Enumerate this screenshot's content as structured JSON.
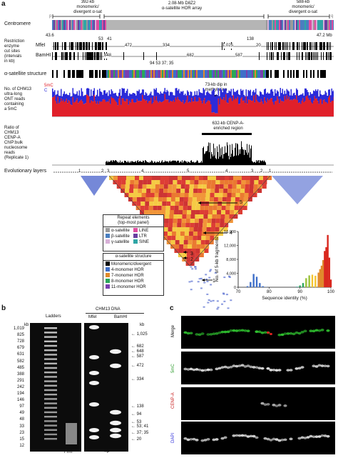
{
  "panel_a": {
    "letter": "a",
    "top_labels": {
      "left_region": "392-kb\nmonomeric/\ndivergent α-sat",
      "middle_region": "2.08-Mb D8Z2\nα-satellite HOR array",
      "right_region": "588-kb\nmonomeric/\ndivergent α-sat",
      "p_arm": "p",
      "q_arm": "q"
    },
    "centromere_label": "Centromere",
    "coordinates": {
      "start": "43.6",
      "end": "47.2 Mb"
    },
    "restriction": {
      "title": "Restriction\nenzyme\ncut sites\n(intervals\nin kb)",
      "mfei_label": "MfeI",
      "bamhi_label": "BamHI",
      "mfei_intervals": [
        "53",
        "41",
        "472",
        "334",
        "1,025",
        "138",
        "20"
      ],
      "bamhi_intervals": [
        "648",
        "682",
        "587",
        "94",
        "53",
        "37",
        "35"
      ]
    },
    "alpha_sat_structure_label": "α-satellite structure",
    "methylation": {
      "title": "No. of CHM13\nultra-long\nONT reads\ncontaining\na 5mC",
      "legend_5mc": "5mC",
      "legend_c": "C",
      "dip_label": "73-kb dip in\nmethylation",
      "color_5mc": "#e0202a",
      "color_c": "#2b2bd9"
    },
    "cenpa": {
      "title": "Ratio of\nCHM13\nCENP-A\nChIP:bulk\nnucleosome\nreads\n(Replicate 1)",
      "region_label": "632-kb CENP-A-\nenriched region"
    },
    "evolutionary_layers": {
      "title": "Evolutionary layers",
      "layer_numbers": [
        "1",
        "2",
        "3",
        "4",
        "5",
        "4",
        "3",
        "2",
        "1"
      ],
      "arrow_labels": [
        "5",
        "4",
        "3",
        "2",
        "1"
      ]
    },
    "legend": {
      "repeat_title": "Repeat elements\n(top-most panel)",
      "repeat_items": [
        {
          "label": "α-satellite",
          "color": "#9a9a9a"
        },
        {
          "label": "LINE",
          "color": "#e04da0"
        },
        {
          "label": "β-satellite",
          "color": "#4a7fc0"
        },
        {
          "label": "LTR",
          "color": "#6a3fa0"
        },
        {
          "label": "γ-satellite",
          "color": "#d8b0d8"
        },
        {
          "label": "SINE",
          "color": "#2fa6a6"
        }
      ],
      "structure_title": "α-satellite structure",
      "structure_items": [
        {
          "label": "Monomeric/divergent",
          "color": "#000000"
        },
        {
          "label": "4-monomer HOR",
          "color": "#3f6fc9"
        },
        {
          "label": "7-monomer HOR",
          "color": "#e08a2c"
        },
        {
          "label": "8-monomer HOR",
          "color": "#2aa75a"
        },
        {
          "label": "11-monomer HOR",
          "color": "#7a3fb0"
        }
      ]
    },
    "histogram": {
      "ylabel": "No. of 5-kb fragments",
      "xlabel": "Sequence identity (%)"
    }
  },
  "chart_data": {
    "type": "bar",
    "title": "",
    "xlabel": "Sequence identity (%)",
    "ylabel": "No. of 5-kb fragments",
    "xlim": [
      70,
      100
    ],
    "ylim": [
      0,
      16000
    ],
    "xticks": [
      "70",
      "80",
      "90",
      "100"
    ],
    "yticks": [
      "0",
      "4,000",
      "8,000",
      "12,000",
      "16,000"
    ],
    "x": [
      73,
      74,
      75,
      76,
      77,
      78,
      79,
      80,
      89,
      90,
      91,
      92,
      93,
      94,
      95,
      96,
      96.5,
      97,
      97.5,
      98,
      98.5,
      99,
      99.5,
      100
    ],
    "values": [
      300,
      1500,
      3800,
      3000,
      1200,
      300,
      80,
      20,
      150,
      500,
      1200,
      2600,
      3400,
      3600,
      3300,
      4200,
      5200,
      6200,
      7800,
      10400,
      11500,
      15000,
      8500,
      2200
    ]
  },
  "panel_b": {
    "letter": "b",
    "ladders_label": "Ladders",
    "dna_label": "CHM13 DNA",
    "mfei_label": "MfeI",
    "bamhi_label": "BamHI",
    "kb_label": "kb",
    "ladder_sizes": [
      "1,019",
      "825",
      "728",
      "679",
      "631",
      "582",
      "485",
      "388",
      "291",
      "242",
      "194",
      "146",
      "97",
      "49",
      "48",
      "33",
      "23",
      "15",
      "12"
    ],
    "band_sizes": [
      "1,025",
      "682",
      "648",
      "587",
      "472",
      "334",
      "138",
      "94",
      "53",
      "53; 41",
      "37; 35",
      "20"
    ],
    "lane_bottom_left": "FfRr",
    "lane_bottom_right": "³²P"
  },
  "panel_c": {
    "letter": "c",
    "rows": [
      {
        "label": "Merge",
        "color": "#111111"
      },
      {
        "label": "5mC",
        "color": "#2a9a2a"
      },
      {
        "label": "CENP-A",
        "color": "#c81e1e"
      },
      {
        "label": "DAPI",
        "color": "#2b2bd9"
      }
    ]
  }
}
